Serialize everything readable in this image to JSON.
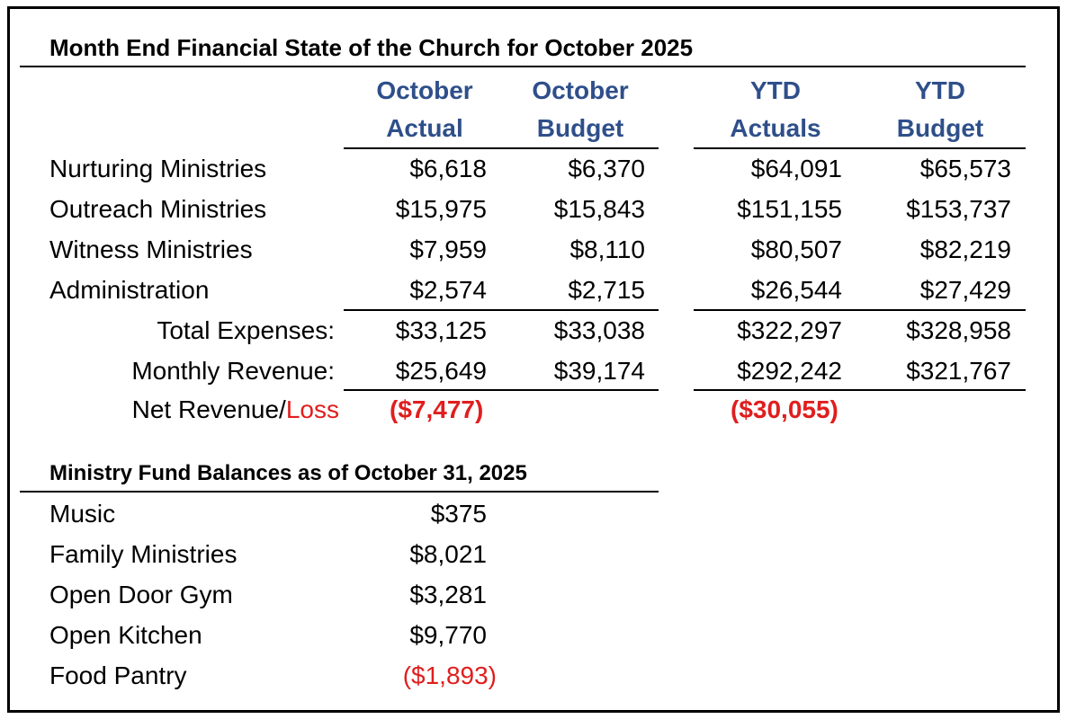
{
  "title": "Month End Financial State of the Church for October 2025",
  "columns": [
    {
      "line1": "October",
      "line2": "Actual"
    },
    {
      "line1": "October",
      "line2": "Budget"
    },
    {
      "line1": "YTD",
      "line2": "Actuals"
    },
    {
      "line1": "YTD",
      "line2": "Budget"
    }
  ],
  "expense_rows": [
    {
      "label": "Nurturing Ministries",
      "values": [
        "$6,618",
        "$6,370",
        "$64,091",
        "$65,573"
      ]
    },
    {
      "label": "Outreach Ministries",
      "values": [
        "$15,975",
        "$15,843",
        "$151,155",
        "$153,737"
      ]
    },
    {
      "label": "Witness Ministries",
      "values": [
        "$7,959",
        "$8,110",
        "$80,507",
        "$82,219"
      ]
    },
    {
      "label": "Administration",
      "values": [
        "$2,574",
        "$2,715",
        "$26,544",
        "$27,429"
      ]
    }
  ],
  "totals": {
    "total_expenses": {
      "label": "Total Expenses:",
      "values": [
        "$33,125",
        "$33,038",
        "$322,297",
        "$328,958"
      ]
    },
    "monthly_revenue": {
      "label": "Monthly Revenue:",
      "values": [
        "$25,649",
        "$39,174",
        "$292,242",
        "$321,767"
      ]
    }
  },
  "net": {
    "label_part1": "Net Revenue/",
    "label_part2": "Loss",
    "october_actual": "($7,477)",
    "ytd_actuals": "($30,055)"
  },
  "fund_balances": {
    "title": "Ministry Fund Balances as of October 31, 2025",
    "items": [
      {
        "label": "Music",
        "value": "$375",
        "negative": false
      },
      {
        "label": "Family Ministries",
        "value": "$8,021",
        "negative": false
      },
      {
        "label": "Open Door Gym",
        "value": "$3,281",
        "negative": false
      },
      {
        "label": "Open Kitchen",
        "value": "$9,770",
        "negative": false
      },
      {
        "label": "Food Pantry",
        "value": "($1,893)",
        "negative": true
      }
    ]
  },
  "colors": {
    "header_blue": "#2e4f8a",
    "negative_red": "#e01e1e"
  }
}
